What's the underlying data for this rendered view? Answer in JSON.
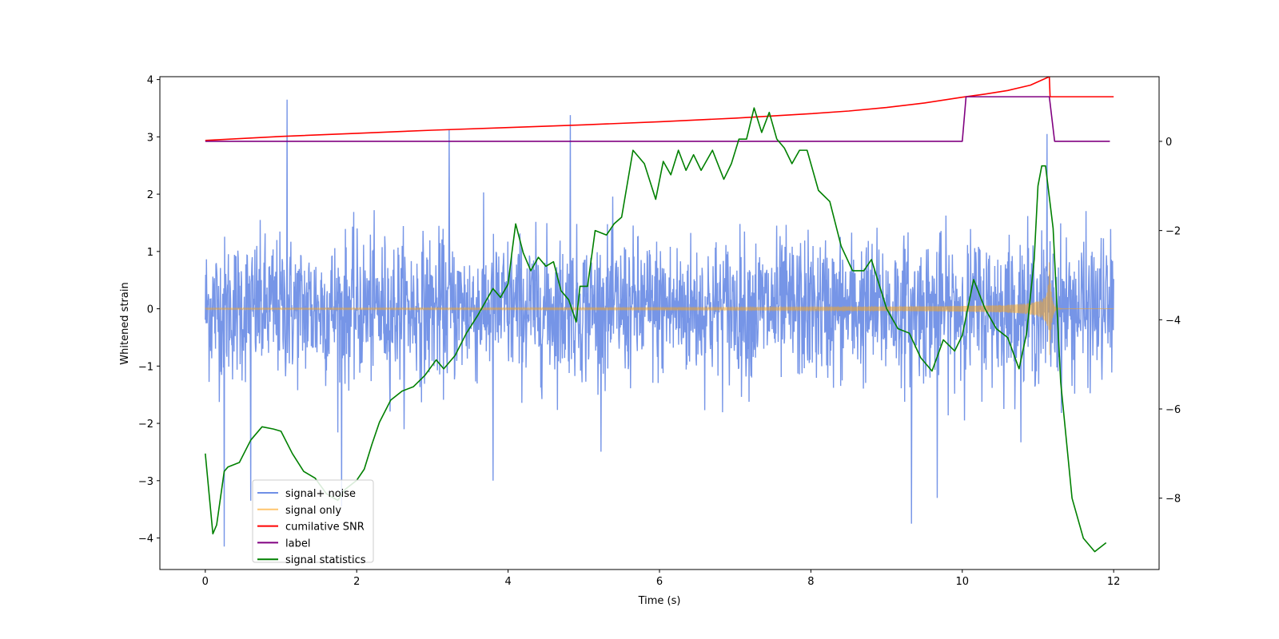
{
  "chart_data": {
    "type": "line",
    "title": "",
    "xlabel": "Time (s)",
    "ylabel": "Whitened strain",
    "y2label": "",
    "xlim": [
      -0.6,
      12.6
    ],
    "ylim": [
      -4.55,
      4.05
    ],
    "y2lim": [
      -9.6,
      1.45
    ],
    "x_ticks": [
      0,
      2,
      4,
      6,
      8,
      10,
      12
    ],
    "y_ticks": [
      -4,
      -3,
      -2,
      -1,
      0,
      1,
      2,
      3,
      4
    ],
    "y2_ticks": [
      -8,
      -6,
      -4,
      -2,
      0
    ],
    "legend_position": "lower-left",
    "series": [
      {
        "name": "signal+ noise",
        "color": "#6f8fe6",
        "axis": "left",
        "style": "noise",
        "x_range": [
          0,
          12
        ],
        "sigma": 0.62,
        "notable_peaks": [
          {
            "x": 1.08,
            "y": 3.65
          },
          {
            "x": 3.22,
            "y": 3.12
          },
          {
            "x": 4.82,
            "y": 3.38
          },
          {
            "x": 11.12,
            "y": 3.05
          },
          {
            "x": 0.25,
            "y": -4.15
          },
          {
            "x": 0.6,
            "y": -3.35
          },
          {
            "x": 1.8,
            "y": -3.45
          },
          {
            "x": 9.33,
            "y": -3.75
          },
          {
            "x": 9.67,
            "y": -3.3
          },
          {
            "x": 3.8,
            "y": -3.0
          }
        ]
      },
      {
        "name": "signal only",
        "color": "#f5a623",
        "axis": "left",
        "style": "chirp",
        "x_range": [
          0,
          12
        ],
        "merger_time": 11.15,
        "peak_amplitude": 0.95
      },
      {
        "name": "cumilative SNR",
        "color": "#ff0000",
        "axis": "right",
        "x": [
          0,
          1,
          2,
          3,
          4,
          5,
          6,
          7,
          8,
          8.5,
          9,
          9.5,
          10,
          10.3,
          10.6,
          10.9,
          11.15,
          11.16,
          12
        ],
        "values": [
          0.02,
          0.11,
          0.18,
          0.25,
          0.31,
          0.37,
          0.44,
          0.52,
          0.62,
          0.68,
          0.76,
          0.86,
          0.99,
          1.06,
          1.14,
          1.26,
          1.45,
          1.0,
          1.0
        ]
      },
      {
        "name": "label",
        "color": "#800080",
        "axis": "right",
        "x": [
          0,
          10.0,
          10.05,
          11.15,
          11.22,
          11.95
        ],
        "values": [
          0,
          0,
          1,
          1,
          0,
          0
        ]
      },
      {
        "name": "signal statistics",
        "color": "#008000",
        "axis": "right",
        "x": [
          0,
          0.1,
          0.15,
          0.25,
          0.3,
          0.45,
          0.6,
          0.75,
          0.9,
          1.0,
          1.15,
          1.3,
          1.45,
          1.6,
          1.75,
          1.85,
          2.0,
          2.1,
          2.2,
          2.3,
          2.45,
          2.6,
          2.75,
          2.9,
          3.05,
          3.15,
          3.3,
          3.45,
          3.6,
          3.7,
          3.8,
          3.9,
          4.0,
          4.05,
          4.1,
          4.2,
          4.3,
          4.4,
          4.5,
          4.6,
          4.7,
          4.8,
          4.9,
          4.95,
          5.05,
          5.15,
          5.3,
          5.4,
          5.5,
          5.65,
          5.8,
          5.95,
          6.05,
          6.15,
          6.25,
          6.35,
          6.45,
          6.55,
          6.7,
          6.85,
          6.95,
          7.05,
          7.15,
          7.25,
          7.35,
          7.45,
          7.55,
          7.65,
          7.75,
          7.85,
          7.95,
          8.1,
          8.25,
          8.4,
          8.55,
          8.7,
          8.8,
          8.9,
          9.0,
          9.15,
          9.3,
          9.45,
          9.6,
          9.75,
          9.9,
          10.0,
          10.15,
          10.3,
          10.45,
          10.6,
          10.75,
          10.85,
          10.95,
          11.0,
          11.05,
          11.1,
          11.2,
          11.3,
          11.45,
          11.6,
          11.75,
          11.9
        ],
        "values": [
          -7.0,
          -8.8,
          -8.6,
          -7.4,
          -7.3,
          -7.2,
          -6.7,
          -6.4,
          -6.45,
          -6.5,
          -7.0,
          -7.4,
          -7.55,
          -7.9,
          -8.05,
          -7.8,
          -7.6,
          -7.35,
          -6.8,
          -6.3,
          -5.8,
          -5.6,
          -5.5,
          -5.25,
          -4.9,
          -5.1,
          -4.8,
          -4.3,
          -3.9,
          -3.6,
          -3.3,
          -3.5,
          -3.2,
          -2.5,
          -1.85,
          -2.5,
          -2.9,
          -2.6,
          -2.8,
          -2.7,
          -3.35,
          -3.55,
          -4.05,
          -3.25,
          -3.25,
          -2.0,
          -2.1,
          -1.85,
          -1.7,
          -0.2,
          -0.5,
          -1.3,
          -0.45,
          -0.75,
          -0.2,
          -0.65,
          -0.3,
          -0.65,
          -0.2,
          -0.85,
          -0.5,
          0.05,
          0.05,
          0.75,
          0.2,
          0.65,
          0.05,
          -0.15,
          -0.5,
          -0.2,
          -0.2,
          -1.1,
          -1.35,
          -2.35,
          -2.9,
          -2.9,
          -2.65,
          -3.2,
          -3.75,
          -4.2,
          -4.3,
          -4.85,
          -5.15,
          -4.45,
          -4.7,
          -4.35,
          -3.1,
          -3.75,
          -4.2,
          -4.4,
          -5.1,
          -4.3,
          -2.65,
          -1.0,
          -0.55,
          -0.55,
          -1.95,
          -5.4,
          -8.0,
          -8.9,
          -9.2,
          -9.0
        ]
      }
    ]
  }
}
